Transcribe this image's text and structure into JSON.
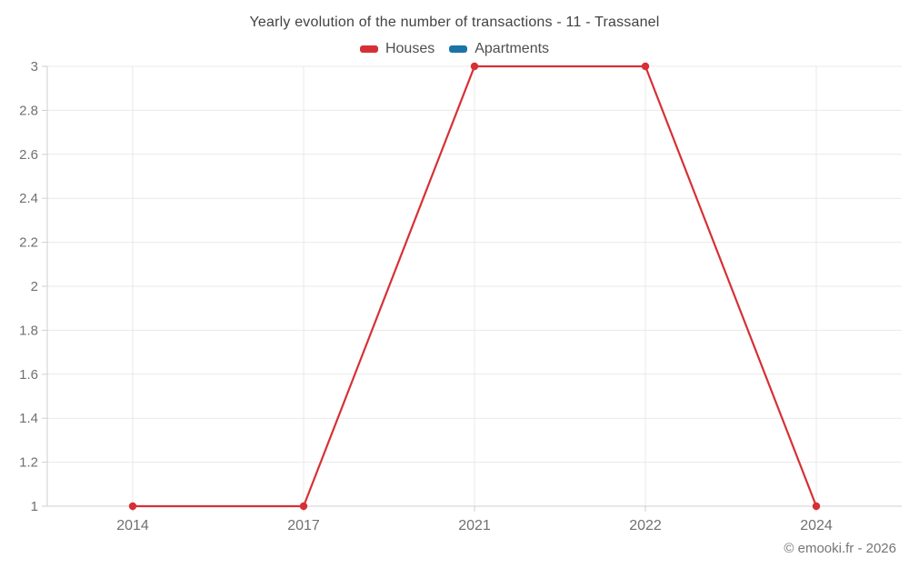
{
  "chart": {
    "title": "Yearly evolution of the number of transactions - 11 - Trassanel",
    "credit": "© emooki.fr - 2026"
  },
  "chart_data": {
    "type": "line",
    "title": "Yearly evolution of the number of transactions - 11 - Trassanel",
    "categories": [
      "2014",
      "2017",
      "2021",
      "2022",
      "2024"
    ],
    "series": [
      {
        "name": "Houses",
        "color": "#d63036",
        "values": [
          1,
          1,
          3,
          3,
          1
        ]
      },
      {
        "name": "Apartments",
        "color": "#1b74a6",
        "values": []
      }
    ],
    "xlabel": "",
    "ylabel": "",
    "ylim": [
      1,
      3
    ],
    "ytick_step": 0.2,
    "grid": true,
    "legend_position": "top",
    "colors": {
      "gridline": "#e9e9e9",
      "axis": "#cfcfcf",
      "tick_label": "#707070",
      "title_text": "#424242",
      "credit_text": "#757575"
    }
  }
}
